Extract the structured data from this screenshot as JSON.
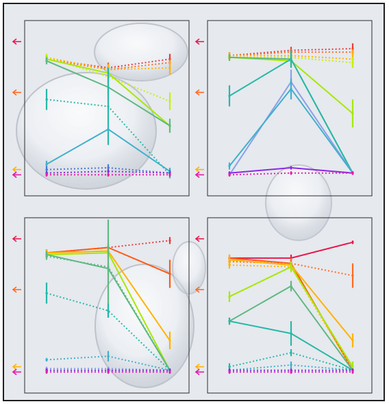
{
  "colors": {
    "frame": "#1e1e1e",
    "background": "#e6e9ee",
    "axes": "#2a2a2a"
  },
  "chart_data": [
    {
      "type": "line",
      "panel": "top-left",
      "x": [
        0,
        1,
        2
      ],
      "ylim": [
        0,
        1
      ],
      "grid": false,
      "legend": "none",
      "markers": [
        {
          "color": "#e8194f",
          "y": 0.88
        },
        {
          "color": "#ff6a20",
          "y": 0.59
        },
        {
          "color": "#ffb300",
          "y": 0.15
        },
        {
          "color": "#8a2be2",
          "y": 0.12
        },
        {
          "color": "#e91ea8",
          "y": 0.12
        }
      ],
      "series": [
        {
          "color": "#e83a3a",
          "style": "dotted",
          "values": [
            0.78,
            0.73,
            0.78
          ],
          "err": [
            0.02,
            0.03,
            0.03
          ]
        },
        {
          "color": "#ff6a20",
          "style": "dotted",
          "values": [
            0.78,
            0.72,
            0.76
          ],
          "err": [
            0.02,
            0.04,
            0.02
          ]
        },
        {
          "color": "#ffb300",
          "style": "dotted",
          "values": [
            0.79,
            0.72,
            0.73
          ],
          "err": [
            0.02,
            0.03,
            0.04
          ]
        },
        {
          "color": "#c8f000",
          "style": "dotted",
          "values": [
            0.79,
            0.68,
            0.54
          ],
          "err": [
            0.02,
            0.04,
            0.05
          ]
        },
        {
          "color": "#a6e800",
          "style": "solid",
          "values": [
            0.78,
            0.7,
            0.4
          ],
          "err": [
            0.02,
            0.02,
            0.02
          ]
        },
        {
          "color": "#5fb882",
          "style": "solid",
          "values": [
            0.77,
            0.62,
            0.4
          ],
          "err": [
            0.02,
            0.05,
            0.04
          ]
        },
        {
          "color": "#26b8a8",
          "style": "dotted",
          "values": [
            0.55,
            0.51,
            0.12
          ],
          "err": [
            0.06,
            0.22,
            0.02
          ]
        },
        {
          "color": "#3fb0cc",
          "style": "solid",
          "values": [
            0.18,
            0.38,
            0.14
          ],
          "err": [
            0.02,
            0.02,
            0.02
          ]
        },
        {
          "color": "#4a7bd8",
          "style": "dotted",
          "values": [
            0.15,
            0.16,
            0.13
          ],
          "err": [
            0.02,
            0.02,
            0.02
          ]
        },
        {
          "color": "#8a2be2",
          "style": "dotted",
          "values": [
            0.13,
            0.14,
            0.13
          ],
          "err": [
            0.01,
            0.01,
            0.01
          ]
        },
        {
          "color": "#e91ea8",
          "style": "dotted",
          "values": [
            0.12,
            0.12,
            0.12
          ],
          "err": [
            0.01,
            0.01,
            0.01
          ]
        }
      ]
    },
    {
      "type": "line",
      "panel": "top-right",
      "x": [
        0,
        1,
        2
      ],
      "ylim": [
        0,
        1
      ],
      "grid": false,
      "legend": "none",
      "markers": [
        {
          "color": "#e8194f",
          "y": 0.88
        },
        {
          "color": "#ff6a20",
          "y": 0.59
        },
        {
          "color": "#ffb300",
          "y": 0.15
        },
        {
          "color": "#8a2be2",
          "y": 0.12
        },
        {
          "color": "#e91ea8",
          "y": 0.12
        }
      ],
      "series": [
        {
          "color": "#e83a3a",
          "style": "dotted",
          "values": [
            0.8,
            0.83,
            0.84
          ],
          "err": [
            0.02,
            0.02,
            0.03
          ]
        },
        {
          "color": "#ff6a20",
          "style": "dotted",
          "values": [
            0.8,
            0.82,
            0.82
          ],
          "err": [
            0.02,
            0.02,
            0.02
          ]
        },
        {
          "color": "#ffb300",
          "style": "dotted",
          "values": [
            0.8,
            0.8,
            0.78
          ],
          "err": [
            0.02,
            0.02,
            0.05
          ]
        },
        {
          "color": "#c8f000",
          "style": "dotted",
          "values": [
            0.79,
            0.79,
            0.76
          ],
          "err": [
            0.02,
            0.02,
            0.03
          ]
        },
        {
          "color": "#a6e800",
          "style": "solid",
          "values": [
            0.79,
            0.77,
            0.47
          ],
          "err": [
            0.02,
            0.03,
            0.08
          ]
        },
        {
          "color": "#5fb882",
          "style": "solid",
          "values": [
            0.79,
            0.78,
            0.13
          ],
          "err": [
            0.02,
            0.04,
            0.01
          ]
        },
        {
          "color": "#26b8a8",
          "style": "solid",
          "values": [
            0.57,
            0.78,
            0.13
          ],
          "err": [
            0.06,
            0.05,
            0.01
          ]
        },
        {
          "color": "#8aa0e8",
          "style": "solid",
          "values": [
            0.12,
            0.65,
            0.13
          ],
          "err": [
            0.01,
            0.07,
            0.01
          ]
        },
        {
          "color": "#3fb0cc",
          "style": "solid",
          "values": [
            0.17,
            0.61,
            0.13
          ],
          "err": [
            0.02,
            0.06,
            0.01
          ]
        },
        {
          "color": "#8a2be2",
          "style": "solid",
          "values": [
            0.13,
            0.16,
            0.13
          ],
          "err": [
            0.01,
            0.01,
            0.01
          ]
        },
        {
          "color": "#e91ea8",
          "style": "dotted",
          "values": [
            0.12,
            0.13,
            0.13
          ],
          "err": [
            0.01,
            0.01,
            0.01
          ]
        }
      ]
    },
    {
      "type": "line",
      "panel": "bottom-left",
      "x": [
        0,
        1,
        2
      ],
      "ylim": [
        0,
        1
      ],
      "grid": false,
      "legend": "none",
      "markers": [
        {
          "color": "#e8194f",
          "y": 0.88
        },
        {
          "color": "#ff6a20",
          "y": 0.59
        },
        {
          "color": "#ffb300",
          "y": 0.15
        },
        {
          "color": "#8a2be2",
          "y": 0.12
        },
        {
          "color": "#e91ea8",
          "y": 0.12
        }
      ],
      "series": [
        {
          "color": "#e83a3a",
          "style": "dotted",
          "values": [
            0.8,
            0.83,
            0.87
          ],
          "err": [
            0.02,
            0.02,
            0.02
          ]
        },
        {
          "color": "#ff5a10",
          "style": "solid",
          "values": [
            0.8,
            0.83,
            0.68
          ],
          "err": [
            0.02,
            0.02,
            0.08
          ]
        },
        {
          "color": "#ffb300",
          "style": "solid",
          "values": [
            0.8,
            0.81,
            0.3
          ],
          "err": [
            0.02,
            0.02,
            0.05
          ]
        },
        {
          "color": "#a6e800",
          "style": "solid",
          "values": [
            0.79,
            0.8,
            0.13
          ],
          "err": [
            0.02,
            0.03,
            0.01
          ]
        },
        {
          "color": "#5fb882",
          "style": "solid",
          "values": [
            0.79,
            0.71,
            0.13
          ],
          "err": [
            0.02,
            0.28,
            0.01
          ]
        },
        {
          "color": "#5fb882",
          "style": "dotted",
          "values": [
            0.78,
            0.72,
            0.13
          ],
          "err": [
            0.02,
            0.02,
            0.01
          ]
        },
        {
          "color": "#26b8a8",
          "style": "dotted",
          "values": [
            0.57,
            0.47,
            0.13
          ],
          "err": [
            0.06,
            0.04,
            0.01
          ]
        },
        {
          "color": "#3fb0cc",
          "style": "dotted",
          "values": [
            0.19,
            0.21,
            0.13
          ],
          "err": [
            0.01,
            0.03,
            0.01
          ]
        },
        {
          "color": "#8aa0e8",
          "style": "dotted",
          "values": [
            0.14,
            0.14,
            0.13
          ],
          "err": [
            0.01,
            0.01,
            0.01
          ]
        },
        {
          "color": "#8a2be2",
          "style": "dotted",
          "values": [
            0.13,
            0.13,
            0.13
          ],
          "err": [
            0.01,
            0.01,
            0.01
          ]
        },
        {
          "color": "#e91ea8",
          "style": "dotted",
          "values": [
            0.12,
            0.12,
            0.12
          ],
          "err": [
            0.01,
            0.01,
            0.01
          ]
        }
      ]
    },
    {
      "type": "line",
      "panel": "bottom-right",
      "x": [
        0,
        1,
        2
      ],
      "ylim": [
        0,
        1
      ],
      "grid": false,
      "legend": "none",
      "markers": [
        {
          "color": "#e8194f",
          "y": 0.88
        },
        {
          "color": "#ff6a20",
          "y": 0.59
        },
        {
          "color": "#ffb300",
          "y": 0.15
        },
        {
          "color": "#8a2be2",
          "y": 0.12
        },
        {
          "color": "#e91ea8",
          "y": 0.12
        }
      ],
      "series": [
        {
          "color": "#e8194f",
          "style": "solid",
          "values": [
            0.77,
            0.77,
            0.86
          ],
          "err": [
            0.01,
            0.02,
            0.01
          ]
        },
        {
          "color": "#ff5a10",
          "style": "solid",
          "values": [
            0.77,
            0.74,
            0.13
          ],
          "err": [
            0.02,
            0.02,
            0.01
          ]
        },
        {
          "color": "#ff6a20",
          "style": "dotted",
          "values": [
            0.75,
            0.74,
            0.67
          ],
          "err": [
            0.02,
            0.03,
            0.07
          ]
        },
        {
          "color": "#ffb300",
          "style": "dotted",
          "values": [
            0.73,
            0.72,
            0.13
          ],
          "err": [
            0.02,
            0.02,
            0.01
          ]
        },
        {
          "color": "#ffb300",
          "style": "solid",
          "values": [
            0.76,
            0.73,
            0.3
          ],
          "err": [
            0.03,
            0.02,
            0.04
          ]
        },
        {
          "color": "#a6e800",
          "style": "solid",
          "values": [
            0.55,
            0.72,
            0.15
          ],
          "err": [
            0.03,
            0.03,
            0.03
          ]
        },
        {
          "color": "#5fb882",
          "style": "solid",
          "values": [
            0.41,
            0.61,
            0.13
          ],
          "err": [
            0.02,
            0.03,
            0.01
          ]
        },
        {
          "color": "#26b8a8",
          "style": "solid",
          "values": [
            0.41,
            0.34,
            0.13
          ],
          "err": [
            0.02,
            0.07,
            0.01
          ]
        },
        {
          "color": "#26b8a8",
          "style": "dotted",
          "values": [
            0.15,
            0.23,
            0.13
          ],
          "err": [
            0.02,
            0.02,
            0.01
          ]
        },
        {
          "color": "#3fb0cc",
          "style": "dotted",
          "values": [
            0.13,
            0.16,
            0.13
          ],
          "err": [
            0.01,
            0.02,
            0.01
          ]
        },
        {
          "color": "#8a2be2",
          "style": "dotted",
          "values": [
            0.13,
            0.13,
            0.13
          ],
          "err": [
            0.01,
            0.01,
            0.01
          ]
        },
        {
          "color": "#e91ea8",
          "style": "dotted",
          "values": [
            0.12,
            0.12,
            0.12
          ],
          "err": [
            0.01,
            0.01,
            0.01
          ]
        }
      ]
    }
  ]
}
